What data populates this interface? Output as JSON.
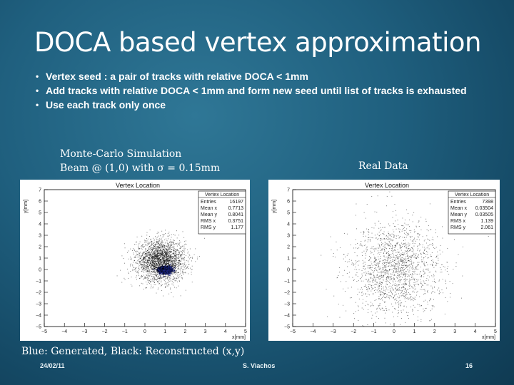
{
  "slide": {
    "title": "DOCA based vertex approximation",
    "bullets": [
      "Vertex seed : a pair of tracks with relative DOCA < 1mm",
      "Add tracks with relative DOCA < 1mm and form new seed until list of tracks is exhausted",
      "Use each track only once"
    ],
    "bullet_symbol": "•",
    "caption_left_line1": "Monte-Carlo Simulation",
    "caption_left_line2": "Beam @ (1,0) with σ = 0.15mm",
    "caption_right": "Real Data",
    "caption_bottom": "Blue: Generated, Black: Reconstructed (x,y)",
    "footer_date": "24/02/11",
    "footer_author": "S. Viachos",
    "footer_page": "16"
  },
  "colors": {
    "background": "#1f5f7e",
    "generated": "#1a237e",
    "reconstructed": "#000000"
  },
  "chart_data": [
    {
      "type": "scatter",
      "title": "Vertex Location",
      "xlabel": "x[mm]",
      "ylabel": "y[mm]",
      "xlim": [
        -5,
        5
      ],
      "ylim": [
        -5,
        7
      ],
      "xticks": [
        "−5",
        "−4",
        "−3",
        "−2",
        "−1",
        "0",
        "1",
        "2",
        "3",
        "4",
        "5"
      ],
      "yticks": [
        "−5",
        "−4",
        "−3",
        "−2",
        "−1",
        "0",
        "1",
        "2",
        "3",
        "4",
        "5",
        "6",
        "7"
      ],
      "stats": {
        "header": "Vertex Location",
        "rows": [
          [
            "Entries",
            "16197"
          ],
          [
            "Mean x",
            "0.7713"
          ],
          [
            "Mean y",
            "0.8041"
          ],
          [
            "RMS x",
            "0.3751"
          ],
          [
            "RMS y",
            "1.177"
          ]
        ]
      },
      "series": [
        {
          "color": "#1a237e",
          "center": [
            1.0,
            0.0
          ],
          "sigma": [
            0.15,
            0.15
          ],
          "count": 1200
        },
        {
          "color": "#000000",
          "center": [
            0.77,
            0.8
          ],
          "sigma": [
            0.6,
            0.9
          ],
          "count": 2600
        }
      ]
    },
    {
      "type": "scatter",
      "title": "Vertex Location",
      "xlabel": "x[mm]",
      "ylabel": "y[mm]",
      "xlim": [
        -5,
        5
      ],
      "ylim": [
        -5,
        7
      ],
      "xticks": [
        "−5",
        "−4",
        "−3",
        "−2",
        "−1",
        "0",
        "1",
        "2",
        "3",
        "4",
        "5"
      ],
      "yticks": [
        "−5",
        "−4",
        "−3",
        "−2",
        "−1",
        "0",
        "1",
        "2",
        "3",
        "4",
        "5",
        "6",
        "7"
      ],
      "stats": {
        "header": "Vertex Location",
        "rows": [
          [
            "Entries",
            "7398"
          ],
          [
            "Mean x",
            "0.03504"
          ],
          [
            "Mean y",
            "0.03505"
          ],
          [
            "RMS x",
            "1.139"
          ],
          [
            "RMS y",
            "2.061"
          ]
        ]
      },
      "series": [
        {
          "color": "#000000",
          "center": [
            0.035,
            0.035
          ],
          "sigma": [
            1.139,
            2.061
          ],
          "count": 1800
        }
      ]
    }
  ]
}
